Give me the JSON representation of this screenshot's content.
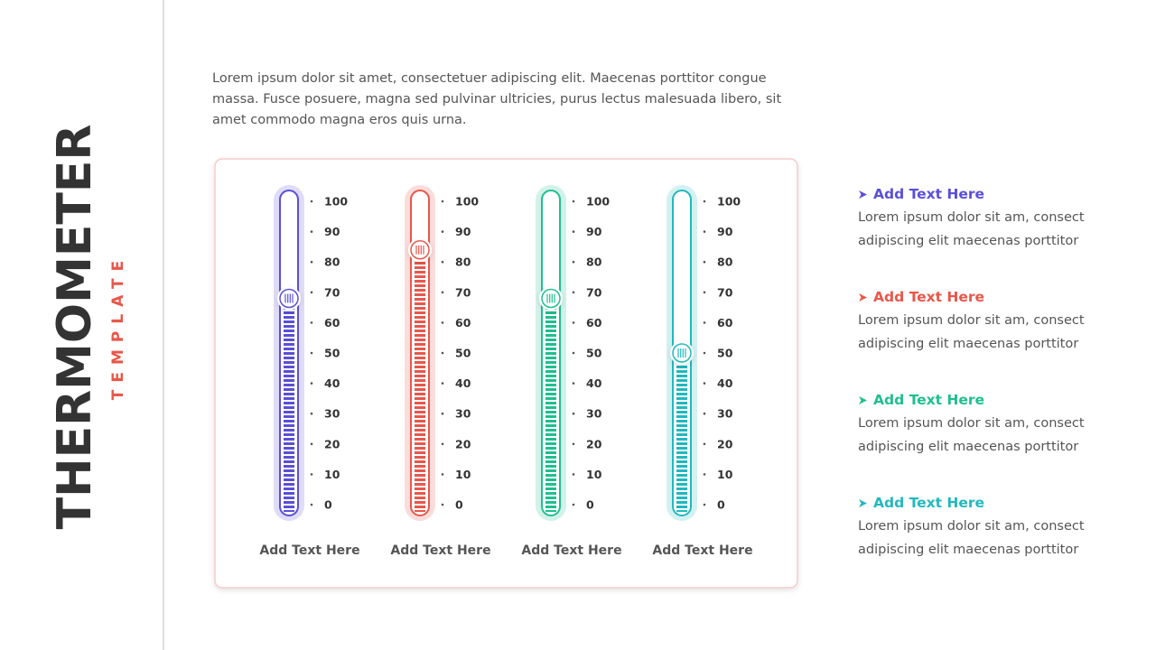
{
  "title": "THERMOMETER",
  "subtitle": "TEMPLATE",
  "description": "Lorem ipsum dolor sit amet, consectetuer adipiscing elit. Maecenas porttitor congue massa. Fusce posuere, magna sed pulvinar ultricies, purus lectus malesuada libero, sit amet commodo magna eros quis urna.",
  "chart_data": [
    {
      "type": "thermometer",
      "value": 68,
      "color": "#5a4fd8",
      "ylim": [
        0,
        100
      ],
      "yticks": [
        0,
        10,
        20,
        30,
        40,
        50,
        60,
        70,
        80,
        90,
        100
      ],
      "label": "Add Text Here"
    },
    {
      "type": "thermometer",
      "value": 84,
      "color": "#e8574a",
      "ylim": [
        0,
        100
      ],
      "yticks": [
        0,
        10,
        20,
        30,
        40,
        50,
        60,
        70,
        80,
        90,
        100
      ],
      "label": "Add Text Here"
    },
    {
      "type": "thermometer",
      "value": 68,
      "color": "#1fbf8f",
      "ylim": [
        0,
        100
      ],
      "yticks": [
        0,
        10,
        20,
        30,
        40,
        50,
        60,
        70,
        80,
        90,
        100
      ],
      "label": "Add Text Here"
    },
    {
      "type": "thermometer",
      "value": 50,
      "color": "#22b8c0",
      "ylim": [
        0,
        100
      ],
      "yticks": [
        0,
        10,
        20,
        30,
        40,
        50,
        60,
        70,
        80,
        90,
        100
      ],
      "label": "Add Text Here"
    }
  ],
  "items": [
    {
      "title": "Add Text Here",
      "text": "Lorem ipsum dolor sit am, consect adipiscing elit maecenas porttitor",
      "color": "#5a4fd8"
    },
    {
      "title": "Add Text Here",
      "text": "Lorem ipsum dolor sit am, consect adipiscing elit maecenas porttitor",
      "color": "#e8574a"
    },
    {
      "title": "Add Text Here",
      "text": "Lorem ipsum dolor sit am, consect adipiscing elit maecenas porttitor",
      "color": "#1fbf8f"
    },
    {
      "title": "Add Text Here",
      "text": "Lorem ipsum dolor sit am, consect adipiscing elit maecenas porttitor",
      "color": "#22b8c0"
    }
  ]
}
